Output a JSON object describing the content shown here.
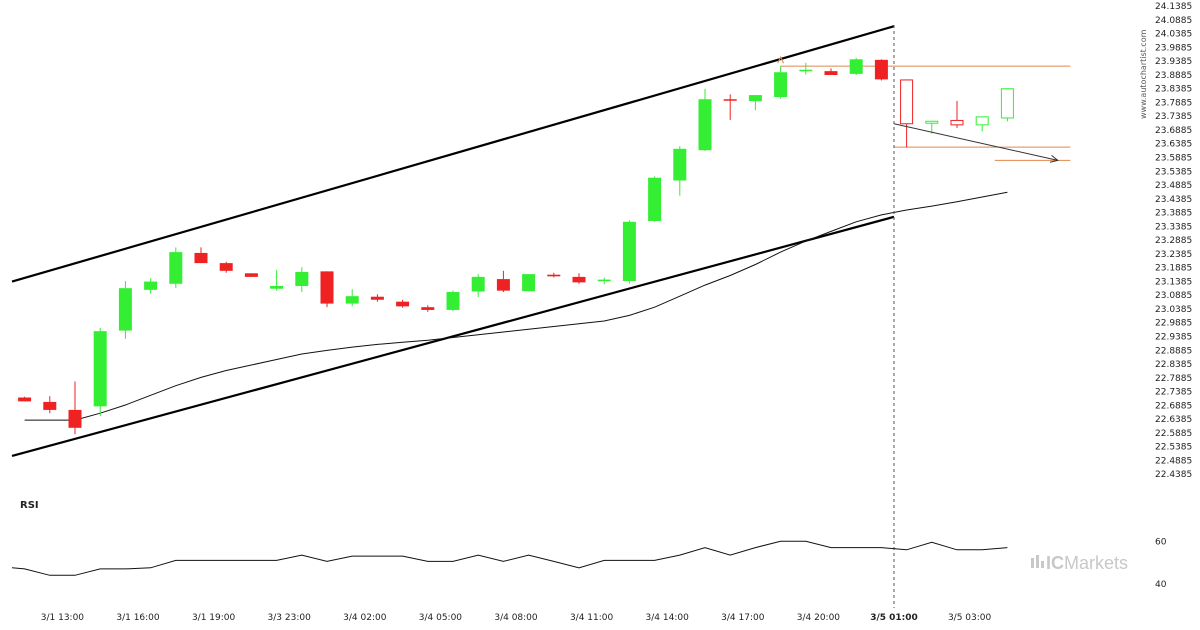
{
  "chart_data": {
    "type": "candlestick",
    "indicator": "RSI",
    "watermark": "www.autochartist.com",
    "brand": {
      "prefix": "IC",
      "suffix": "Markets"
    },
    "colors": {
      "up": "#33ee33",
      "down": "#ee2222",
      "rsi": "#111111",
      "ma": "#111111",
      "channel": "#000000",
      "level": "#e0884a",
      "vline": "#555555"
    },
    "price_axis": {
      "ylim": [
        22.3885,
        24.1385
      ],
      "ticks": [
        "24.1385",
        "24.0885",
        "24.0385",
        "23.9885",
        "23.9385",
        "23.8885",
        "23.8385",
        "23.7885",
        "23.7385",
        "23.6885",
        "23.6385",
        "23.5885",
        "23.5385",
        "23.4885",
        "23.4385",
        "23.3885",
        "23.3385",
        "23.2885",
        "23.2385",
        "23.1885",
        "23.1385",
        "23.0885",
        "23.0385",
        "22.9885",
        "22.9385",
        "22.8885",
        "22.8385",
        "22.7885",
        "22.7385",
        "22.6885",
        "22.6385",
        "22.5885",
        "22.5385",
        "22.4885",
        "22.4385"
      ]
    },
    "rsi_axis": {
      "ticks": [
        "60",
        "40"
      ],
      "ylim": [
        30,
        70
      ]
    },
    "x_labels": [
      {
        "label": "3/1 13:00",
        "index": 1.5
      },
      {
        "label": "3/1 16:00",
        "index": 4.5
      },
      {
        "label": "3/1 19:00",
        "index": 7.5
      },
      {
        "label": "3/3 23:00",
        "index": 10.5
      },
      {
        "label": "3/4 02:00",
        "index": 13.5
      },
      {
        "label": "3/4 05:00",
        "index": 16.5
      },
      {
        "label": "3/4 08:00",
        "index": 19.5
      },
      {
        "label": "3/4 11:00",
        "index": 22.5
      },
      {
        "label": "3/4 14:00",
        "index": 25.5
      },
      {
        "label": "3/4 17:00",
        "index": 28.5
      },
      {
        "label": "3/4 20:00",
        "index": 31.5
      },
      {
        "label": "3/5 01:00",
        "index": 34.5,
        "bold": true
      },
      {
        "label": "3/5 03:00",
        "index": 37.5
      }
    ],
    "candles": [
      {
        "o": 22.717,
        "h": 22.72,
        "l": 22.703,
        "c": 22.703
      },
      {
        "o": 22.701,
        "h": 22.722,
        "l": 22.66,
        "c": 22.672
      },
      {
        "o": 22.672,
        "h": 22.775,
        "l": 22.584,
        "c": 22.607
      },
      {
        "o": 22.685,
        "h": 22.97,
        "l": 22.65,
        "c": 22.958
      },
      {
        "o": 22.96,
        "h": 23.14,
        "l": 22.93,
        "c": 23.114
      },
      {
        "o": 23.108,
        "h": 23.15,
        "l": 23.095,
        "c": 23.138
      },
      {
        "o": 23.13,
        "h": 23.262,
        "l": 23.115,
        "c": 23.245
      },
      {
        "o": 23.242,
        "h": 23.262,
        "l": 23.205,
        "c": 23.205
      },
      {
        "o": 23.205,
        "h": 23.21,
        "l": 23.17,
        "c": 23.177
      },
      {
        "o": 23.168,
        "h": 23.168,
        "l": 23.155,
        "c": 23.155
      },
      {
        "o": 23.112,
        "h": 23.18,
        "l": 23.105,
        "c": 23.122
      },
      {
        "o": 23.122,
        "h": 23.19,
        "l": 23.1,
        "c": 23.173
      },
      {
        "o": 23.175,
        "h": 23.175,
        "l": 23.045,
        "c": 23.058
      },
      {
        "o": 23.058,
        "h": 23.11,
        "l": 23.048,
        "c": 23.085
      },
      {
        "o": 23.083,
        "h": 23.092,
        "l": 23.065,
        "c": 23.072
      },
      {
        "o": 23.065,
        "h": 23.072,
        "l": 23.043,
        "c": 23.048
      },
      {
        "o": 23.045,
        "h": 23.052,
        "l": 23.028,
        "c": 23.035
      },
      {
        "o": 23.035,
        "h": 23.105,
        "l": 23.03,
        "c": 23.1
      },
      {
        "o": 23.102,
        "h": 23.165,
        "l": 23.082,
        "c": 23.155
      },
      {
        "o": 23.147,
        "h": 23.177,
        "l": 23.1,
        "c": 23.105
      },
      {
        "o": 23.103,
        "h": 23.162,
        "l": 23.103,
        "c": 23.165
      },
      {
        "o": 23.163,
        "h": 23.17,
        "l": 23.153,
        "c": 23.157
      },
      {
        "o": 23.155,
        "h": 23.168,
        "l": 23.13,
        "c": 23.135
      },
      {
        "o": 23.14,
        "h": 23.152,
        "l": 23.128,
        "c": 23.145
      },
      {
        "o": 23.14,
        "h": 23.36,
        "l": 23.13,
        "c": 23.355
      },
      {
        "o": 23.358,
        "h": 23.52,
        "l": 23.355,
        "c": 23.515
      },
      {
        "o": 23.505,
        "h": 23.63,
        "l": 23.45,
        "c": 23.62
      },
      {
        "o": 23.615,
        "h": 23.838,
        "l": 23.612,
        "c": 23.8
      },
      {
        "o": 23.8,
        "h": 23.818,
        "l": 23.725,
        "c": 23.795
      },
      {
        "o": 23.793,
        "h": 23.815,
        "l": 23.76,
        "c": 23.815
      },
      {
        "o": 23.808,
        "h": 23.92,
        "l": 23.802,
        "c": 23.898
      },
      {
        "o": 23.905,
        "h": 23.932,
        "l": 23.89,
        "c": 23.907
      },
      {
        "o": 23.902,
        "h": 23.912,
        "l": 23.888,
        "c": 23.888
      },
      {
        "o": 23.892,
        "h": 23.95,
        "l": 23.888,
        "c": 23.945
      },
      {
        "o": 23.943,
        "h": 23.945,
        "l": 23.868,
        "c": 23.872
      },
      {
        "o": 23.87,
        "h": 23.872,
        "l": 23.625,
        "c": 23.711
      },
      {
        "o": 23.713,
        "h": 23.718,
        "l": 23.675,
        "c": 23.72
      },
      {
        "o": 23.723,
        "h": 23.794,
        "l": 23.696,
        "c": 23.707
      },
      {
        "o": 23.707,
        "h": 23.736,
        "l": 23.683,
        "c": 23.736
      },
      {
        "o": 23.732,
        "h": 23.838,
        "l": 23.72,
        "c": 23.838
      }
    ],
    "moving_average": [
      {
        "i": 0,
        "v": 22.635
      },
      {
        "i": 2,
        "v": 22.635
      },
      {
        "i": 3,
        "v": 22.66
      },
      {
        "i": 4,
        "v": 22.69
      },
      {
        "i": 5,
        "v": 22.725
      },
      {
        "i": 6,
        "v": 22.76
      },
      {
        "i": 7,
        "v": 22.79
      },
      {
        "i": 8,
        "v": 22.815
      },
      {
        "i": 9,
        "v": 22.835
      },
      {
        "i": 10,
        "v": 22.855
      },
      {
        "i": 11,
        "v": 22.875
      },
      {
        "i": 12,
        "v": 22.888
      },
      {
        "i": 13,
        "v": 22.9
      },
      {
        "i": 14,
        "v": 22.91
      },
      {
        "i": 15,
        "v": 22.918
      },
      {
        "i": 16,
        "v": 22.925
      },
      {
        "i": 17,
        "v": 22.935
      },
      {
        "i": 18,
        "v": 22.945
      },
      {
        "i": 19,
        "v": 22.955
      },
      {
        "i": 20,
        "v": 22.965
      },
      {
        "i": 21,
        "v": 22.975
      },
      {
        "i": 22,
        "v": 22.985
      },
      {
        "i": 23,
        "v": 22.995
      },
      {
        "i": 24,
        "v": 23.015
      },
      {
        "i": 25,
        "v": 23.045
      },
      {
        "i": 26,
        "v": 23.085
      },
      {
        "i": 27,
        "v": 23.125
      },
      {
        "i": 28,
        "v": 23.16
      },
      {
        "i": 29,
        "v": 23.2
      },
      {
        "i": 30,
        "v": 23.245
      },
      {
        "i": 31,
        "v": 23.285
      },
      {
        "i": 32,
        "v": 23.32
      },
      {
        "i": 33,
        "v": 23.355
      },
      {
        "i": 34,
        "v": 23.38
      },
      {
        "i": 35,
        "v": 23.398
      },
      {
        "i": 36,
        "v": 23.412
      },
      {
        "i": 37,
        "v": 23.428
      },
      {
        "i": 38,
        "v": 23.445
      },
      {
        "i": 39,
        "v": 23.462
      }
    ],
    "rsi": [
      47,
      44,
      44,
      47,
      47,
      47.5,
      51,
      51,
      51,
      51,
      51,
      53.5,
      50.5,
      53,
      53,
      53,
      50.5,
      50.5,
      53.5,
      50.5,
      53.5,
      50.5,
      47.5,
      51,
      51,
      51,
      53.5,
      57,
      53.5,
      57,
      60,
      60,
      57,
      57,
      57,
      56,
      59.5,
      56,
      56,
      57
    ],
    "channel": {
      "upper": [
        {
          "i": -0.5,
          "v": 23.138
        },
        {
          "i": 34.5,
          "v": 24.065
        }
      ],
      "lower": [
        {
          "i": -0.5,
          "v": 22.505
        },
        {
          "i": 34.5,
          "v": 23.373
        }
      ]
    },
    "levels": [
      {
        "v": 23.92,
        "from": 30.0,
        "to": 41.5
      },
      {
        "v": 23.626,
        "from": 34.5,
        "to": 41.5
      },
      {
        "v": 23.578,
        "from": 38.5,
        "to": 41.5
      }
    ],
    "projection": {
      "from": {
        "i": 34.5,
        "v": 23.711
      },
      "to": {
        "i": 41.0,
        "v": 23.578
      }
    },
    "signal_index": 34.5,
    "peak_marker": {
      "i": 30.0,
      "v": 23.942
    }
  }
}
